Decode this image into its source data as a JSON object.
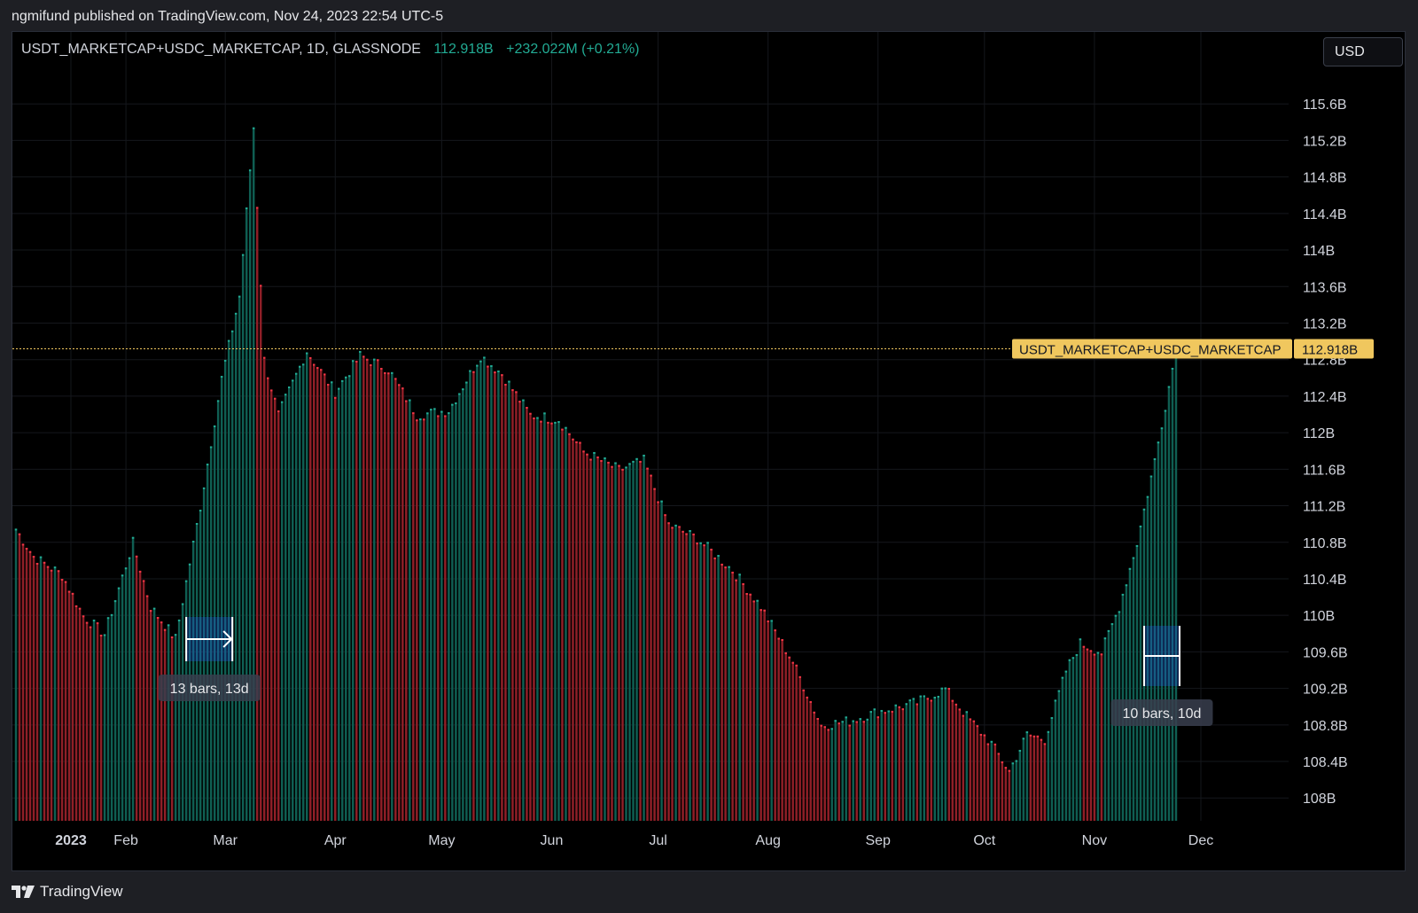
{
  "caption": "ngmifund published on TradingView.com, Nov 24, 2023 22:54 UTC-5",
  "legend": {
    "symbol": "USDT_MARKETCAP+USDC_MARKETCAP, 1D, GLASSNODE",
    "value": "112.918B",
    "change": "+232.022M (+0.21%)"
  },
  "currency": "USD",
  "footer": {
    "brand": "TradingView",
    "logo_icon": "tradingview-logo-icon"
  },
  "colors": {
    "up": "#22ab94",
    "down": "#f23645",
    "up_bar": "#0f5e52",
    "down_bar": "#8f1f27",
    "price_line": "#f0c75e",
    "label_bg": "#f0c75e"
  },
  "price_label": {
    "name": "USDT_MARKETCAP+USDC_MARKETCAP",
    "value": "112.918B"
  },
  "measures": [
    {
      "label": "13 bars, 13d",
      "start": "2023-02-18",
      "end": "2023-03-03"
    },
    {
      "label": "10 bars, 10d",
      "start": "2023-11-15",
      "end": "2023-11-25"
    }
  ],
  "chart_data": {
    "type": "bar",
    "title": "USDT_MARKETCAP+USDC_MARKETCAP, 1D, GLASSNODE",
    "ylim": [
      107.75,
      116.0
    ],
    "y_ticks": [
      "115.6B",
      "115.2B",
      "114.8B",
      "114.4B",
      "114B",
      "113.6B",
      "113.2B",
      "112.8B",
      "112.4B",
      "112B",
      "111.6B",
      "111.2B",
      "110.8B",
      "110.4B",
      "110B",
      "109.6B",
      "109.2B",
      "108.8B",
      "108.4B",
      "108B"
    ],
    "x_ticks": [
      "2023",
      "Feb",
      "Mar",
      "Apr",
      "May",
      "Jun",
      "Jul",
      "Aug",
      "Sep",
      "Oct",
      "Nov",
      "Dec"
    ],
    "x_range": [
      "2023-01-01",
      "2023-11-24"
    ],
    "last_value": 112.918,
    "grid": true,
    "anchors": [
      [
        "2023-01-01",
        110.95
      ],
      [
        "2023-01-06",
        110.65
      ],
      [
        "2023-01-14",
        110.45
      ],
      [
        "2023-01-20",
        110.0
      ],
      [
        "2023-01-26",
        109.8
      ],
      [
        "2023-02-03",
        110.8
      ],
      [
        "2023-02-08",
        110.1
      ],
      [
        "2023-02-15",
        109.75
      ],
      [
        "2023-02-22",
        111.2
      ],
      [
        "2023-02-28",
        112.6
      ],
      [
        "2023-03-05",
        113.5
      ],
      [
        "2023-03-09",
        115.35
      ],
      [
        "2023-03-12",
        112.8
      ],
      [
        "2023-03-16",
        112.2
      ],
      [
        "2023-03-24",
        112.9
      ],
      [
        "2023-04-01",
        112.45
      ],
      [
        "2023-04-08",
        112.85
      ],
      [
        "2023-04-16",
        112.7
      ],
      [
        "2023-04-24",
        112.2
      ],
      [
        "2023-05-03",
        112.25
      ],
      [
        "2023-05-12",
        112.85
      ],
      [
        "2023-05-18",
        112.65
      ],
      [
        "2023-05-26",
        112.2
      ],
      [
        "2023-06-03",
        112.15
      ],
      [
        "2023-06-10",
        111.8
      ],
      [
        "2023-06-20",
        111.6
      ],
      [
        "2023-06-27",
        111.7
      ],
      [
        "2023-07-04",
        111.0
      ],
      [
        "2023-07-12",
        110.85
      ],
      [
        "2023-07-22",
        110.5
      ],
      [
        "2023-07-30",
        110.1
      ],
      [
        "2023-08-08",
        109.5
      ],
      [
        "2023-08-16",
        108.8
      ],
      [
        "2023-08-24",
        108.85
      ],
      [
        "2023-09-01",
        108.95
      ],
      [
        "2023-09-12",
        109.05
      ],
      [
        "2023-09-20",
        109.2
      ],
      [
        "2023-09-26",
        108.9
      ],
      [
        "2023-10-03",
        108.6
      ],
      [
        "2023-10-08",
        108.3
      ],
      [
        "2023-10-13",
        108.7
      ],
      [
        "2023-10-18",
        108.65
      ],
      [
        "2023-10-24",
        109.4
      ],
      [
        "2023-10-28",
        109.7
      ],
      [
        "2023-11-03",
        109.6
      ],
      [
        "2023-11-08",
        110.1
      ],
      [
        "2023-11-13",
        110.8
      ],
      [
        "2023-11-18",
        111.7
      ],
      [
        "2023-11-24",
        112.918
      ]
    ]
  }
}
